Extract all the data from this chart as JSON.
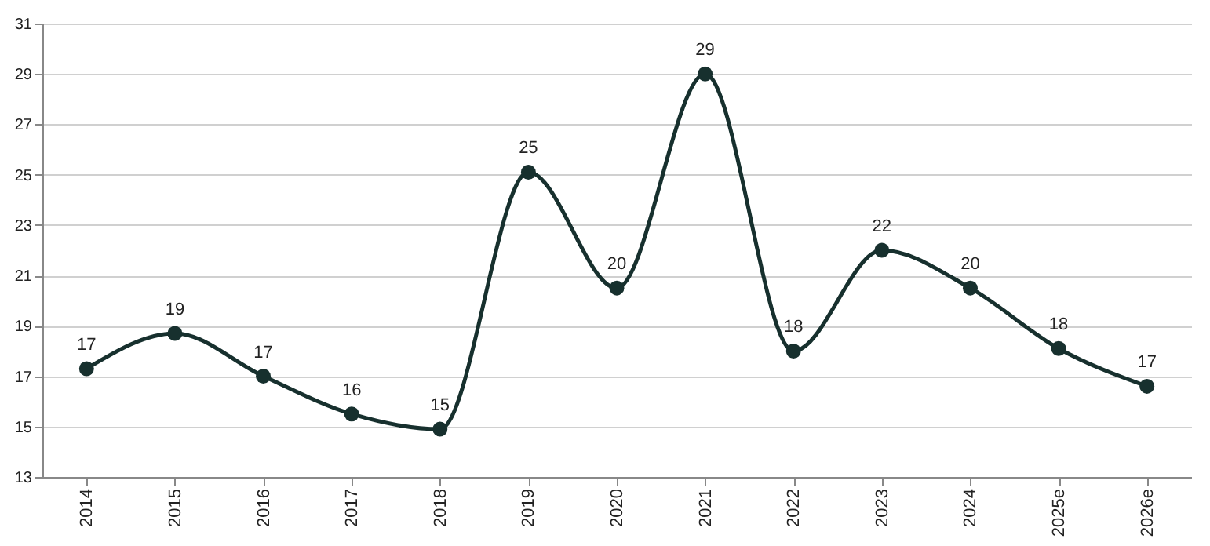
{
  "chart_data": {
    "type": "line",
    "categories": [
      "2014",
      "2015",
      "2016",
      "2017",
      "2018",
      "2019",
      "2020",
      "2021",
      "2022",
      "2023",
      "2024",
      "2025e",
      "2026e"
    ],
    "series": [
      {
        "color": "#17302e",
        "values": [
          17.3,
          18.7,
          17.0,
          15.5,
          14.9,
          25.1,
          20.5,
          29.0,
          18.0,
          22.0,
          20.5,
          18.1,
          16.6
        ],
        "value_labels": [
          "17",
          "19",
          "17",
          "16",
          "15",
          "25",
          "20",
          "29",
          "18",
          "22",
          "20",
          "18",
          "17"
        ]
      }
    ],
    "ylim": [
      13,
      31
    ],
    "yticks": [
      13,
      15,
      17,
      19,
      21,
      23,
      25,
      27,
      29,
      31
    ],
    "grid": "y",
    "marker": "circle",
    "line_style": "solid"
  }
}
